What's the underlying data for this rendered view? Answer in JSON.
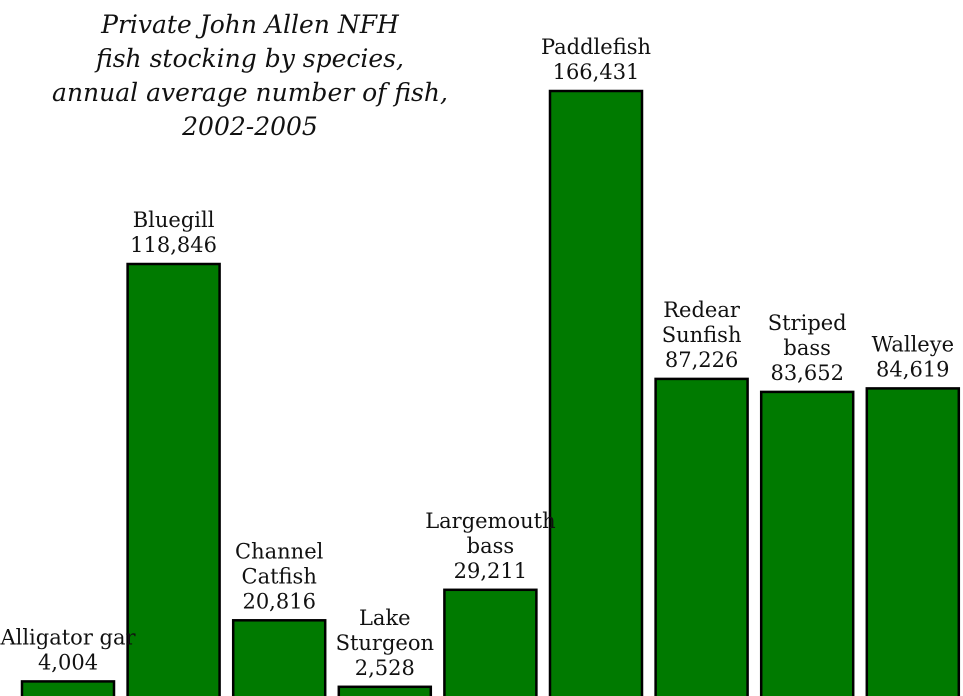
{
  "chart_data": {
    "type": "bar",
    "title_lines": [
      "Private John Allen NFH",
      "fish stocking by species,",
      "annual average number of fish,",
      "2002-2005"
    ],
    "categories": [
      "Alligator gar",
      "Bluegill",
      "Channel Catfish",
      "Lake Sturgeon",
      "Largemouth bass",
      "Paddlefish",
      "Redear Sunfish",
      "Striped bass",
      "Walleye"
    ],
    "category_label_lines": [
      [
        "Alligator gar"
      ],
      [
        "Bluegill"
      ],
      [
        "Channel",
        "Catfish"
      ],
      [
        "Lake",
        "Sturgeon"
      ],
      [
        "Largemouth",
        "bass"
      ],
      [
        "Paddlefish"
      ],
      [
        "Redear",
        "Sunfish"
      ],
      [
        "Striped",
        "bass"
      ],
      [
        "Walleye"
      ]
    ],
    "values": [
      4004,
      118846,
      20816,
      2528,
      29211,
      166431,
      87226,
      83652,
      84619
    ],
    "value_labels": [
      "4,004",
      "118,846",
      "20,816",
      "2,528",
      "29,211",
      "166,431",
      "87,226",
      "83,652",
      "84,619"
    ],
    "ylim": [
      0,
      170000
    ],
    "grid": false,
    "legend": "none",
    "colors": {
      "bar": "#007a00",
      "bar_outline": "#000000",
      "text": "#111111"
    }
  }
}
